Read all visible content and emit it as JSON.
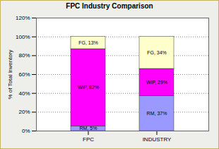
{
  "chart_data": {
    "type": "bar",
    "title": "FPC Industry Comparison",
    "y_label": "% of Total Inventory",
    "categories": [
      "FPC",
      "INDUSTRY"
    ],
    "stacked": true,
    "data_labels": true,
    "grid": true,
    "ylim": [
      0,
      120
    ],
    "yticks": [
      {
        "value": 0,
        "label": "0%"
      },
      {
        "value": 20,
        "label": "20%"
      },
      {
        "value": 40,
        "label": "40%"
      },
      {
        "value": 60,
        "label": "60%"
      },
      {
        "value": 80,
        "label": "80%"
      },
      {
        "value": 100,
        "label": "100%"
      },
      {
        "value": 120,
        "label": "120%"
      }
    ],
    "series": [
      {
        "name": "RM",
        "color": "#9999ff",
        "values": [
          5,
          37
        ],
        "value_labels": [
          "RM, 5%",
          "RM, 37%"
        ]
      },
      {
        "name": "WIP",
        "color": "#ff00ff",
        "values": [
          82,
          29
        ],
        "value_labels": [
          "WIP, 82%",
          "WIP, 29%"
        ]
      },
      {
        "name": "FG",
        "color": "#ffffcc",
        "values": [
          13,
          34
        ],
        "value_labels": [
          "FG, 13%",
          "FG, 34%"
        ]
      }
    ]
  }
}
